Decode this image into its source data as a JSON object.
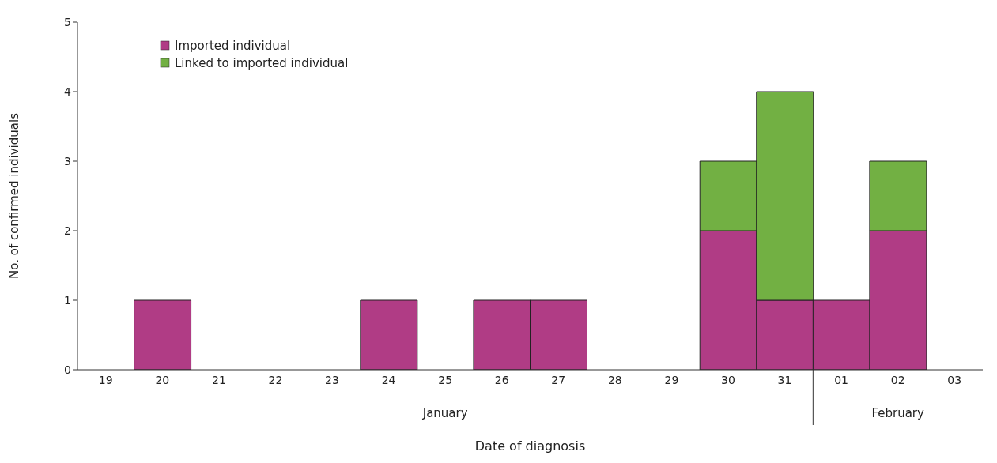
{
  "chart_data": {
    "type": "bar",
    "stacked": true,
    "xlabel": "Date of diagnosis",
    "ylabel": "No. of confirmed individuals",
    "categories": [
      "19",
      "20",
      "21",
      "22",
      "23",
      "24",
      "25",
      "26",
      "27",
      "28",
      "29",
      "30",
      "31",
      "01",
      "02",
      "03"
    ],
    "series": [
      {
        "name": "Imported individual",
        "color": "#b03c85",
        "values": [
          0,
          1,
          0,
          0,
          0,
          1,
          0,
          1,
          1,
          0,
          0,
          2,
          1,
          1,
          2,
          0
        ]
      },
      {
        "name": "Linked to imported individual",
        "color": "#72b043",
        "values": [
          0,
          0,
          0,
          0,
          0,
          0,
          0,
          0,
          0,
          0,
          0,
          1,
          3,
          0,
          1,
          0
        ]
      }
    ],
    "annotations": [
      "January",
      "February"
    ],
    "ylim": [
      0,
      5
    ],
    "yticks": [
      0,
      1,
      2,
      3,
      4,
      5
    ],
    "legend": "top left",
    "grid": false
  }
}
